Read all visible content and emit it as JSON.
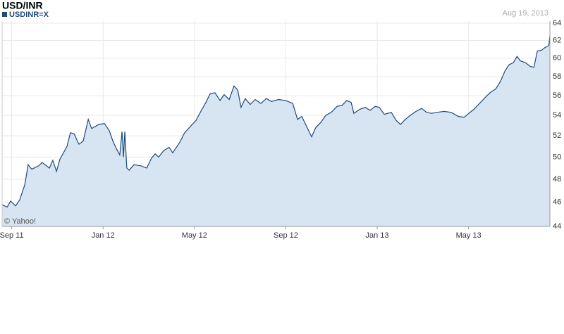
{
  "chart_data": {
    "type": "area",
    "title": "USD/INR",
    "date_label": "Aug 19, 2013",
    "credit": "© Yahoo!",
    "yscale": "log",
    "grid": true,
    "fill_color": "#d6e5f1",
    "x": [
      -0.42,
      -0.2,
      -0.05,
      0.17,
      0.35,
      0.57,
      0.72,
      0.88,
      1.18,
      1.34,
      1.65,
      1.8,
      1.96,
      2.11,
      2.42,
      2.57,
      2.73,
      2.94,
      3.13,
      3.35,
      3.5,
      3.81,
      4.06,
      4.27,
      4.43,
      4.58,
      4.73,
      4.83,
      4.89,
      4.95,
      5.04,
      5.14,
      5.35,
      5.66,
      5.91,
      6.12,
      6.28,
      6.43,
      6.65,
      6.89,
      7.05,
      7.36,
      7.57,
      7.82,
      8.07,
      8.28,
      8.5,
      8.69,
      8.9,
      9.12,
      9.3,
      9.52,
      9.73,
      9.89,
      10.04,
      10.22,
      10.44,
      10.66,
      10.91,
      11.15,
      11.37,
      11.68,
      11.99,
      12.3,
      12.51,
      12.7,
      12.91,
      13.13,
      13.31,
      13.53,
      13.75,
      13.99,
      14.24,
      14.46,
      14.67,
      14.86,
      14.98,
      15.23,
      15.47,
      15.69,
      15.91,
      16.09,
      16.31,
      16.62,
      16.83,
      17.02,
      17.23,
      17.45,
      17.7,
      17.95,
      18.16,
      18.38,
      18.62,
      18.93,
      19.24,
      19.55,
      19.8,
      20.01,
      20.23,
      20.48,
      20.72,
      20.94,
      21.19,
      21.4,
      21.59,
      21.78,
      21.96,
      22.12,
      22.27,
      22.49,
      22.7,
      22.86,
      23.01,
      23.2,
      23.35,
      23.51,
      23.56
    ],
    "series": [
      {
        "name": "USDINR=X",
        "color": "#1f4a7a",
        "values": [
          45.8,
          45.6,
          46.1,
          45.7,
          46.2,
          47.5,
          49.3,
          48.9,
          49.2,
          49.5,
          49.0,
          49.7,
          48.7,
          49.8,
          51.0,
          52.3,
          52.2,
          51.2,
          51.5,
          53.6,
          52.7,
          53.1,
          53.2,
          52.5,
          51.5,
          50.8,
          50.2,
          52.4,
          50.0,
          52.4,
          49.0,
          48.8,
          49.3,
          49.2,
          49.0,
          49.9,
          50.3,
          50.0,
          50.6,
          50.9,
          50.4,
          51.4,
          52.3,
          52.9,
          53.5,
          54.4,
          55.3,
          56.2,
          56.3,
          55.5,
          56.1,
          55.6,
          57.0,
          56.6,
          54.8,
          55.7,
          55.1,
          55.6,
          55.2,
          55.7,
          55.4,
          55.6,
          55.5,
          55.2,
          53.6,
          53.9,
          52.9,
          51.9,
          52.8,
          53.3,
          54.0,
          54.3,
          54.9,
          55.0,
          55.5,
          55.3,
          54.2,
          54.6,
          54.8,
          54.5,
          54.9,
          54.8,
          54.1,
          54.3,
          53.5,
          53.1,
          53.6,
          54.0,
          54.4,
          54.7,
          54.3,
          54.2,
          54.3,
          54.4,
          54.3,
          53.9,
          53.8,
          54.2,
          54.6,
          55.2,
          55.8,
          56.3,
          56.7,
          57.5,
          58.6,
          59.3,
          59.5,
          60.2,
          59.7,
          59.5,
          59.1,
          59.0,
          60.8,
          60.9,
          61.2,
          61.4,
          62.5
        ]
      }
    ],
    "xlim": [
      -0.42,
      23.56
    ],
    "xticks": [
      {
        "value": 0,
        "label": "Sep 11"
      },
      {
        "value": 4,
        "label": "Jan 12"
      },
      {
        "value": 8,
        "label": "May 12"
      },
      {
        "value": 12,
        "label": "Sep 12"
      },
      {
        "value": 16,
        "label": "Jan 13"
      },
      {
        "value": 20,
        "label": "May 13"
      }
    ],
    "ylim": [
      44,
      64
    ],
    "yticks": [
      44,
      46,
      48,
      50,
      52,
      54,
      56,
      58,
      60,
      62,
      64
    ]
  }
}
